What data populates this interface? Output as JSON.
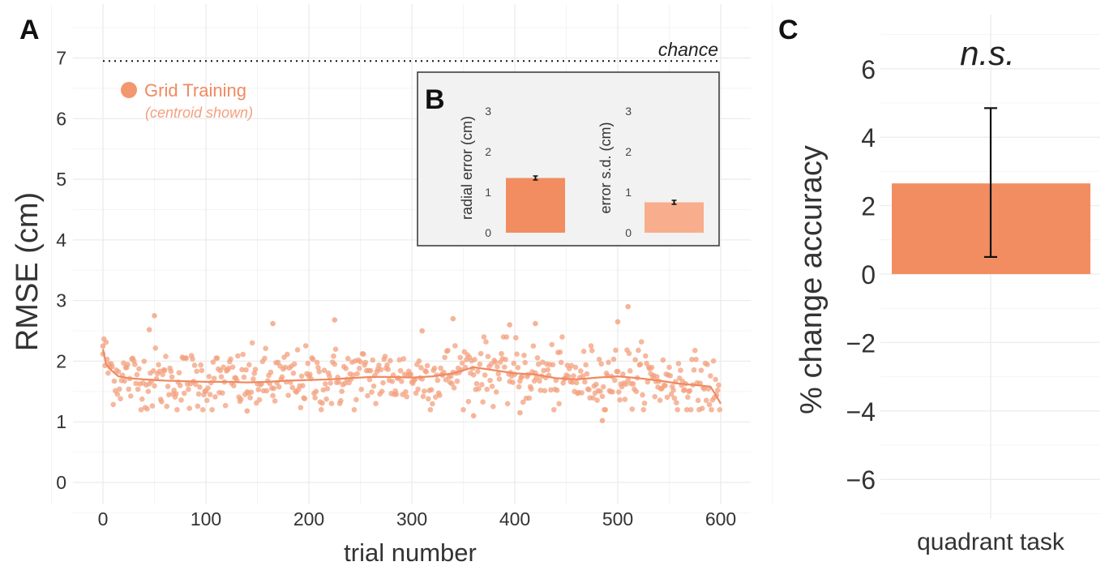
{
  "panels": {
    "a": {
      "letter": "A"
    },
    "b": {
      "letter": "B"
    },
    "c": {
      "letter": "C"
    }
  },
  "colors": {
    "points": "#f3a07e",
    "line": "#ef8a62",
    "bar_main": "#f28d62",
    "bar_light": "#f8ad8c",
    "grid": "#ececec",
    "inset_bg": "#f2f2f2",
    "text": "#333333"
  },
  "chart_data": [
    {
      "panel": "A",
      "type": "scatter",
      "xlabel": "trial number",
      "ylabel": "RMSE (cm)",
      "xlim": [
        -30,
        630
      ],
      "ylim": [
        -0.35,
        7.6
      ],
      "xticks": [
        0,
        100,
        200,
        300,
        400,
        500,
        600
      ],
      "yticks": [
        0,
        1,
        2,
        3,
        4,
        5,
        6,
        7
      ],
      "grid": true,
      "chance": {
        "label": "chance",
        "value": 6.95
      },
      "legend": {
        "label": "Grid Training",
        "sublabel": "(centroid shown)",
        "placement": "top-left"
      },
      "trend": {
        "x": [
          0,
          3,
          8,
          15,
          25,
          40,
          60,
          80,
          100,
          120,
          140,
          160,
          180,
          200,
          220,
          240,
          260,
          280,
          300,
          320,
          340,
          360,
          380,
          400,
          420,
          440,
          460,
          480,
          500,
          520,
          540,
          560,
          580,
          590,
          595,
          600
        ],
        "y": [
          2.2,
          1.95,
          1.85,
          1.75,
          1.72,
          1.7,
          1.68,
          1.67,
          1.66,
          1.66,
          1.65,
          1.66,
          1.68,
          1.69,
          1.7,
          1.72,
          1.74,
          1.74,
          1.73,
          1.75,
          1.8,
          1.9,
          1.85,
          1.8,
          1.78,
          1.72,
          1.7,
          1.73,
          1.75,
          1.72,
          1.68,
          1.63,
          1.6,
          1.58,
          1.45,
          1.3
        ]
      },
      "points": {
        "count": 600,
        "mean": 1.68,
        "sd": 0.26,
        "min": 1.02,
        "max": 2.9,
        "outliers": [
          [
            50,
            2.75
          ],
          [
            45,
            2.52
          ],
          [
            165,
            2.62
          ],
          [
            225,
            2.68
          ],
          [
            510,
            2.9
          ],
          [
            500,
            2.65
          ],
          [
            340,
            2.7
          ],
          [
            310,
            2.5
          ],
          [
            420,
            2.62
          ],
          [
            395,
            2.6
          ],
          [
            485,
            1.02
          ],
          [
            140,
            1.18
          ],
          [
            360,
            1.1
          ],
          [
            405,
            1.15
          ],
          [
            0,
            2.25
          ]
        ]
      }
    },
    {
      "panel": "B",
      "type": "bar",
      "categories": [
        "radial error (cm)",
        "error s.d. (cm)"
      ],
      "values": [
        1.35,
        0.75
      ],
      "errors": [
        0.05,
        0.05
      ],
      "ylim": [
        0,
        3
      ],
      "yticks": [
        0,
        1,
        2,
        3
      ]
    },
    {
      "panel": "C",
      "type": "bar",
      "categories": [
        "quadrant task"
      ],
      "values": [
        2.65
      ],
      "error_low": 0.5,
      "error_high": 4.85,
      "ylabel": "% change accuracy",
      "ylim": [
        -7,
        7
      ],
      "yticks": [
        -6,
        -4,
        -2,
        0,
        2,
        4,
        6
      ],
      "ytick_labels": [
        "−6",
        "−4",
        "−2",
        "0",
        "2",
        "4",
        "6"
      ],
      "annotation": "n.s."
    }
  ]
}
